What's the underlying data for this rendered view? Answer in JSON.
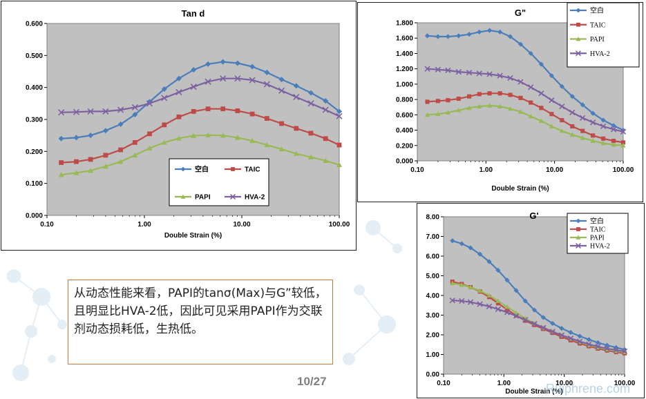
{
  "slide": {
    "note_text": "从动态性能来看，PAPI的tanσ(Max)与G”较低，且明显比HVA-2低，因此可见采用PAPI作为交联剂动态损耗低，生热低。",
    "page_number": "10/27",
    "watermark": "Ruiphrene.com"
  },
  "series_style": [
    {
      "name": "空白",
      "color": "#4a7ebb",
      "marker": "diamond"
    },
    {
      "name": "TAIC",
      "color": "#be4b48",
      "marker": "square"
    },
    {
      "name": "PAPI",
      "color": "#98b954",
      "marker": "triangle"
    },
    {
      "name": "HVA-2",
      "color": "#7d60a0",
      "marker": "x"
    }
  ],
  "chart_data": [
    {
      "type": "line",
      "title": "Tan d",
      "xlabel": "Double Strain (%)",
      "ylabel": "",
      "x_scale": "log",
      "xlim": [
        0.1,
        100
      ],
      "ylim": [
        0,
        0.6
      ],
      "x_ticks": [
        "0.10",
        "1.00",
        "10.00",
        "100.00"
      ],
      "y_ticks": [
        "0.000",
        "0.100",
        "0.200",
        "0.300",
        "0.400",
        "0.500",
        "0.600"
      ],
      "plot_background": "#c0c0c0",
      "legend_position": "bottom-center, 2x2",
      "x": [
        0.14,
        0.2,
        0.28,
        0.4,
        0.57,
        0.8,
        1.13,
        1.6,
        2.26,
        3.2,
        4.5,
        6.4,
        9.05,
        12.8,
        18.1,
        25.6,
        36.2,
        51.2,
        72.4,
        100
      ],
      "series": [
        {
          "name": "空白",
          "values": [
            0.24,
            0.243,
            0.25,
            0.265,
            0.285,
            0.315,
            0.355,
            0.395,
            0.428,
            0.455,
            0.473,
            0.48,
            0.476,
            0.465,
            0.447,
            0.425,
            0.405,
            0.383,
            0.358,
            0.325
          ]
        },
        {
          "name": "TAIC",
          "values": [
            0.165,
            0.168,
            0.175,
            0.188,
            0.205,
            0.228,
            0.255,
            0.283,
            0.308,
            0.325,
            0.333,
            0.333,
            0.327,
            0.317,
            0.303,
            0.287,
            0.272,
            0.257,
            0.24,
            0.22
          ]
        },
        {
          "name": "PAPI",
          "values": [
            0.127,
            0.133,
            0.14,
            0.153,
            0.168,
            0.188,
            0.21,
            0.228,
            0.241,
            0.249,
            0.251,
            0.25,
            0.243,
            0.233,
            0.22,
            0.207,
            0.193,
            0.182,
            0.171,
            0.158
          ]
        },
        {
          "name": "HVA-2",
          "values": [
            0.322,
            0.323,
            0.325,
            0.325,
            0.33,
            0.338,
            0.35,
            0.367,
            0.385,
            0.402,
            0.418,
            0.428,
            0.428,
            0.423,
            0.41,
            0.39,
            0.37,
            0.35,
            0.33,
            0.31
          ]
        }
      ]
    },
    {
      "type": "line",
      "title": "G\"",
      "xlabel": "Double Strain (%)",
      "ylabel": "",
      "x_scale": "log",
      "xlim": [
        0.1,
        100
      ],
      "ylim": [
        0,
        1.8
      ],
      "x_ticks": [
        "0.10",
        "1.00",
        "10.00",
        "100.00"
      ],
      "y_ticks": [
        "0.000",
        "0.200",
        "0.400",
        "0.600",
        "0.800",
        "1.000",
        "1.200",
        "1.400",
        "1.600",
        "1.800"
      ],
      "plot_background": "#c0c0c0",
      "legend_position": "top-right",
      "x": [
        0.14,
        0.2,
        0.28,
        0.4,
        0.57,
        0.8,
        1.13,
        1.6,
        2.26,
        3.2,
        4.5,
        6.4,
        9.05,
        12.8,
        18.1,
        25.6,
        36.2,
        51.2,
        72.4,
        100
      ],
      "series": [
        {
          "name": "空白",
          "values": [
            1.63,
            1.62,
            1.62,
            1.63,
            1.65,
            1.68,
            1.7,
            1.68,
            1.62,
            1.52,
            1.4,
            1.26,
            1.11,
            0.97,
            0.84,
            0.73,
            0.62,
            0.53,
            0.46,
            0.4
          ]
        },
        {
          "name": "TAIC",
          "values": [
            0.77,
            0.78,
            0.79,
            0.81,
            0.84,
            0.87,
            0.88,
            0.88,
            0.86,
            0.82,
            0.76,
            0.69,
            0.61,
            0.53,
            0.45,
            0.39,
            0.33,
            0.29,
            0.26,
            0.24
          ]
        },
        {
          "name": "PAPI",
          "values": [
            0.6,
            0.61,
            0.63,
            0.66,
            0.69,
            0.71,
            0.72,
            0.71,
            0.68,
            0.64,
            0.58,
            0.52,
            0.45,
            0.39,
            0.34,
            0.3,
            0.26,
            0.23,
            0.21,
            0.2
          ]
        },
        {
          "name": "HVA-2",
          "values": [
            1.2,
            1.19,
            1.18,
            1.16,
            1.15,
            1.14,
            1.13,
            1.11,
            1.08,
            1.03,
            0.96,
            0.88,
            0.79,
            0.71,
            0.63,
            0.56,
            0.5,
            0.45,
            0.41,
            0.38
          ]
        }
      ]
    },
    {
      "type": "line",
      "title": "G'",
      "xlabel": "Double Strain (%)",
      "ylabel": "",
      "x_scale": "log",
      "xlim": [
        0.1,
        100
      ],
      "ylim": [
        0,
        8
      ],
      "x_ticks": [
        "0.10",
        "1.00",
        "10.00",
        "100.00"
      ],
      "y_ticks": [
        "0.00",
        "1.00",
        "2.00",
        "3.00",
        "4.00",
        "5.00",
        "6.00",
        "7.00",
        "8.00"
      ],
      "plot_background": "#c0c0c0",
      "legend_position": "top-left",
      "x": [
        0.14,
        0.2,
        0.28,
        0.4,
        0.57,
        0.8,
        1.13,
        1.6,
        2.26,
        3.2,
        4.5,
        6.4,
        9.05,
        12.8,
        18.1,
        25.6,
        36.2,
        51.2,
        72.4,
        100
      ],
      "series": [
        {
          "name": "空白",
          "values": [
            6.78,
            6.63,
            6.42,
            6.1,
            5.72,
            5.28,
            4.78,
            4.25,
            3.72,
            3.26,
            2.88,
            2.58,
            2.33,
            2.12,
            1.93,
            1.76,
            1.6,
            1.47,
            1.35,
            1.25
          ]
        },
        {
          "name": "TAIC",
          "values": [
            4.7,
            4.58,
            4.42,
            4.2,
            3.92,
            3.6,
            3.28,
            2.98,
            2.72,
            2.5,
            2.3,
            2.1,
            1.9,
            1.72,
            1.56,
            1.42,
            1.3,
            1.2,
            1.12,
            1.06
          ]
        },
        {
          "name": "PAPI",
          "values": [
            4.62,
            4.54,
            4.42,
            4.24,
            4.0,
            3.72,
            3.42,
            3.12,
            2.83,
            2.58,
            2.36,
            2.17,
            1.98,
            1.8,
            1.63,
            1.48,
            1.36,
            1.26,
            1.18,
            1.12
          ]
        },
        {
          "name": "HVA-2",
          "values": [
            3.75,
            3.72,
            3.66,
            3.56,
            3.44,
            3.3,
            3.14,
            2.96,
            2.76,
            2.56,
            2.36,
            2.16,
            1.98,
            1.82,
            1.66,
            1.52,
            1.4,
            1.3,
            1.22,
            1.16
          ]
        }
      ]
    }
  ]
}
